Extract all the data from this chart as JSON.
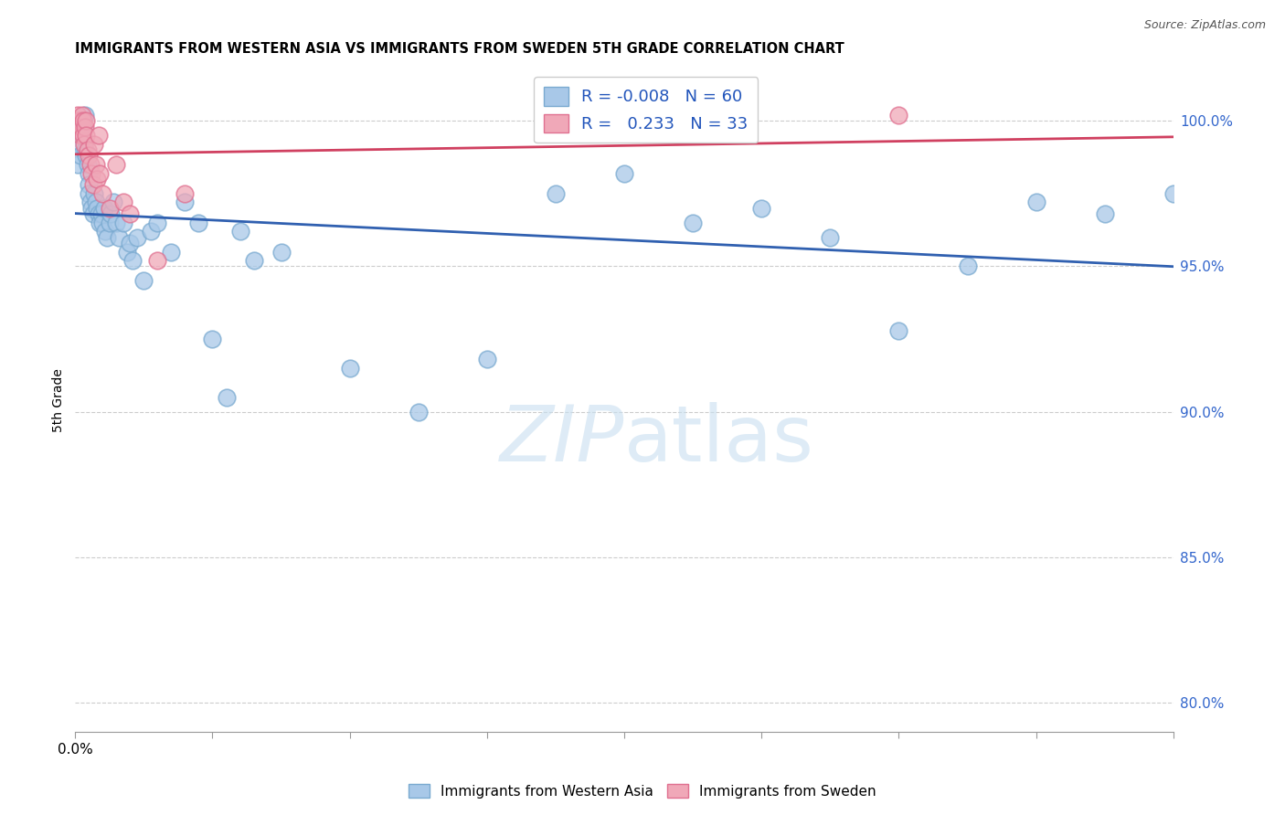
{
  "title": "IMMIGRANTS FROM WESTERN ASIA VS IMMIGRANTS FROM SWEDEN 5TH GRADE CORRELATION CHART",
  "source": "Source: ZipAtlas.com",
  "ylabel": "5th Grade",
  "xlim": [
    0.0,
    80.0
  ],
  "ylim": [
    79.0,
    101.8
  ],
  "yticks": [
    80.0,
    85.0,
    90.0,
    95.0,
    100.0
  ],
  "legend_r_blue": "-0.008",
  "legend_n_blue": "60",
  "legend_r_pink": "0.233",
  "legend_n_pink": "33",
  "blue_color": "#a8c8e8",
  "pink_color": "#f0a8b8",
  "blue_line_color": "#3060b0",
  "pink_line_color": "#d04060",
  "blue_edge_color": "#7aaad0",
  "pink_edge_color": "#e07090",
  "blue_x": [
    0.2,
    0.3,
    0.4,
    0.5,
    0.5,
    0.6,
    0.7,
    0.7,
    0.8,
    0.9,
    1.0,
    1.0,
    1.0,
    1.1,
    1.2,
    1.3,
    1.4,
    1.5,
    1.6,
    1.7,
    1.8,
    1.9,
    2.0,
    2.1,
    2.2,
    2.3,
    2.5,
    2.6,
    2.8,
    3.0,
    3.2,
    3.5,
    3.8,
    4.0,
    4.2,
    4.5,
    5.0,
    5.5,
    6.0,
    7.0,
    8.0,
    9.0,
    10.0,
    11.0,
    12.0,
    13.0,
    15.0,
    20.0,
    25.0,
    30.0,
    35.0,
    40.0,
    45.0,
    50.0,
    55.0,
    60.0,
    65.0,
    70.0,
    75.0,
    80.0
  ],
  "blue_y": [
    98.5,
    99.2,
    98.8,
    99.5,
    100.0,
    99.8,
    100.2,
    99.0,
    98.8,
    98.5,
    98.2,
    97.8,
    97.5,
    97.2,
    97.0,
    96.8,
    97.5,
    97.2,
    97.0,
    96.8,
    96.5,
    96.8,
    96.5,
    97.0,
    96.2,
    96.0,
    96.5,
    96.8,
    97.2,
    96.5,
    96.0,
    96.5,
    95.5,
    95.8,
    95.2,
    96.0,
    94.5,
    96.2,
    96.5,
    95.5,
    97.2,
    96.5,
    92.5,
    90.5,
    96.2,
    95.2,
    95.5,
    91.5,
    90.0,
    91.8,
    97.5,
    98.2,
    96.5,
    97.0,
    96.0,
    92.8,
    95.0,
    97.2,
    96.8,
    97.5
  ],
  "pink_x": [
    0.1,
    0.15,
    0.2,
    0.25,
    0.3,
    0.35,
    0.4,
    0.45,
    0.5,
    0.55,
    0.6,
    0.65,
    0.7,
    0.75,
    0.8,
    0.9,
    1.0,
    1.1,
    1.2,
    1.3,
    1.4,
    1.5,
    1.6,
    1.7,
    1.8,
    2.0,
    2.5,
    3.0,
    3.5,
    4.0,
    6.0,
    8.0,
    60.0
  ],
  "pink_y": [
    99.8,
    100.0,
    100.2,
    100.0,
    99.8,
    100.0,
    99.5,
    99.8,
    100.2,
    100.0,
    99.5,
    99.2,
    99.8,
    100.0,
    99.5,
    99.0,
    98.8,
    98.5,
    98.2,
    97.8,
    99.2,
    98.5,
    98.0,
    99.5,
    98.2,
    97.5,
    97.0,
    98.5,
    97.2,
    96.8,
    95.2,
    97.5,
    100.2
  ]
}
